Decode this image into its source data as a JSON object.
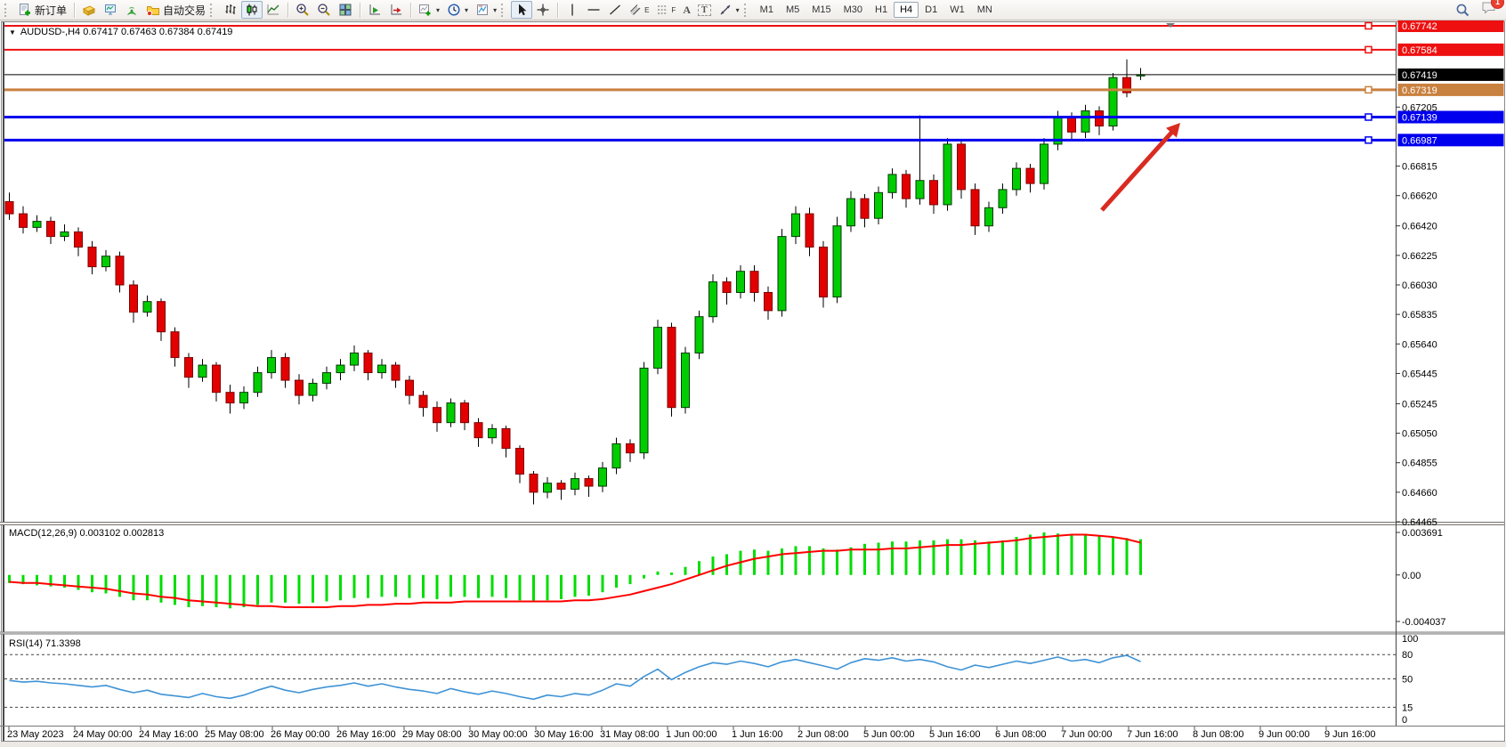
{
  "toolbar": {
    "new_order_label": "新订单",
    "autotrade_label": "自动交易",
    "timeframes": [
      "M1",
      "M5",
      "M15",
      "M30",
      "H1",
      "H4",
      "D1",
      "W1",
      "MN"
    ],
    "active_timeframe": "H4",
    "notification_count": "1",
    "annotation_labels": {
      "channel": "E",
      "fibo": "F",
      "text": "A",
      "label": "T"
    }
  },
  "chart": {
    "title": "AUDUSD-,H4 0.67417 0.67463 0.67384 0.67419",
    "symbol": "AUDUSD-",
    "period": "H4",
    "ohlc": {
      "open": "0.67417",
      "high": "0.67463",
      "low": "0.67384",
      "close": "0.67419"
    }
  },
  "indicators": {
    "macd_label": "MACD(12,26,9) 0.003102 0.002813",
    "rsi_label": "RSI(14) 71.3398"
  },
  "colors": {
    "candle_up": "#00cd00",
    "candle_up_border": "#063906",
    "candle_down": "#e20000",
    "candle_down_border": "#7d0000",
    "wick": "#000000",
    "macd_hist": "#00dd00",
    "macd_signal": "#ff0000",
    "rsi_line": "#3f93d6",
    "level_red": "#ee1010",
    "level_blue": "#0000ee",
    "level_orange": "#c9813f",
    "current_price_bg": "#000000",
    "arrow": "#d92b21",
    "axis_text": "#000000"
  },
  "chart_data": {
    "type": "candlestick",
    "symbol": "AUDUSD",
    "timeframe": "H4",
    "price_axis": {
      "max": 0.67742,
      "min": 0.64465
    },
    "scale_ticks": [
      "0.67205",
      "0.66815",
      "0.66620",
      "0.66420",
      "0.66225",
      "0.66030",
      "0.65835",
      "0.65640",
      "0.65445",
      "0.65245",
      "0.65050",
      "0.64855",
      "0.64660",
      "0.64465"
    ],
    "levels": [
      {
        "price": 0.67742,
        "label": "0.67742",
        "color": "#ee1010",
        "width": 2,
        "marker": true
      },
      {
        "price": 0.67584,
        "label": "0.67584",
        "color": "#ee1010",
        "width": 2,
        "marker": true
      },
      {
        "price": 0.67419,
        "label": "0.67419",
        "color": "#000000",
        "width": 1,
        "marker": false
      },
      {
        "price": 0.67319,
        "label": "0.67319",
        "color": "#c9813f",
        "width": 3,
        "marker": true
      },
      {
        "price": 0.67139,
        "label": "0.67139",
        "color": "#0000ee",
        "width": 3,
        "marker": true
      },
      {
        "price": 0.66987,
        "label": "0.66987",
        "color": "#0000ee",
        "width": 3,
        "marker": true
      }
    ],
    "candles": [
      [
        0.6658,
        0.6664,
        0.6646,
        0.665
      ],
      [
        0.665,
        0.6655,
        0.6637,
        0.6641
      ],
      [
        0.6641,
        0.6649,
        0.6638,
        0.6645
      ],
      [
        0.6645,
        0.6648,
        0.663,
        0.6635
      ],
      [
        0.6635,
        0.6643,
        0.6632,
        0.6638
      ],
      [
        0.6638,
        0.6641,
        0.6622,
        0.6628
      ],
      [
        0.6628,
        0.6632,
        0.661,
        0.6615
      ],
      [
        0.6615,
        0.6626,
        0.6612,
        0.6622
      ],
      [
        0.6622,
        0.6625,
        0.6598,
        0.6603
      ],
      [
        0.6603,
        0.6606,
        0.6578,
        0.6585
      ],
      [
        0.6585,
        0.6596,
        0.6582,
        0.6592
      ],
      [
        0.6592,
        0.6594,
        0.6566,
        0.6572
      ],
      [
        0.6572,
        0.6575,
        0.6549,
        0.6555
      ],
      [
        0.6555,
        0.6558,
        0.6535,
        0.6542
      ],
      [
        0.6542,
        0.6554,
        0.6539,
        0.655
      ],
      [
        0.655,
        0.6552,
        0.6526,
        0.6532
      ],
      [
        0.6532,
        0.6537,
        0.6518,
        0.6525
      ],
      [
        0.6525,
        0.6536,
        0.6521,
        0.6532
      ],
      [
        0.6532,
        0.6549,
        0.6529,
        0.6545
      ],
      [
        0.6545,
        0.656,
        0.6541,
        0.6555
      ],
      [
        0.6555,
        0.6558,
        0.6535,
        0.654
      ],
      [
        0.654,
        0.6544,
        0.6524,
        0.653
      ],
      [
        0.653,
        0.6541,
        0.6526,
        0.6538
      ],
      [
        0.6538,
        0.6549,
        0.6534,
        0.6545
      ],
      [
        0.6545,
        0.6554,
        0.654,
        0.655
      ],
      [
        0.655,
        0.6563,
        0.6546,
        0.6558
      ],
      [
        0.6558,
        0.656,
        0.654,
        0.6545
      ],
      [
        0.6545,
        0.6554,
        0.6541,
        0.655
      ],
      [
        0.655,
        0.6552,
        0.6535,
        0.654
      ],
      [
        0.654,
        0.6543,
        0.6524,
        0.653
      ],
      [
        0.653,
        0.6533,
        0.6516,
        0.6522
      ],
      [
        0.6522,
        0.6526,
        0.6506,
        0.6512
      ],
      [
        0.6512,
        0.6528,
        0.6509,
        0.6525
      ],
      [
        0.6525,
        0.6527,
        0.6507,
        0.6512
      ],
      [
        0.6512,
        0.6515,
        0.6496,
        0.6502
      ],
      [
        0.6502,
        0.6511,
        0.6498,
        0.6508
      ],
      [
        0.6508,
        0.651,
        0.6489,
        0.6495
      ],
      [
        0.6495,
        0.6497,
        0.6472,
        0.6478
      ],
      [
        0.6478,
        0.648,
        0.6458,
        0.6466
      ],
      [
        0.6466,
        0.6476,
        0.6462,
        0.6472
      ],
      [
        0.6472,
        0.6474,
        0.6461,
        0.6468
      ],
      [
        0.6468,
        0.6479,
        0.6464,
        0.6475
      ],
      [
        0.6475,
        0.6477,
        0.6463,
        0.647
      ],
      [
        0.647,
        0.6486,
        0.6466,
        0.6482
      ],
      [
        0.6482,
        0.6502,
        0.6478,
        0.6498
      ],
      [
        0.6498,
        0.6501,
        0.6486,
        0.6492
      ],
      [
        0.6492,
        0.6552,
        0.6488,
        0.6548
      ],
      [
        0.6548,
        0.658,
        0.6544,
        0.6575
      ],
      [
        0.6575,
        0.6578,
        0.6516,
        0.6522
      ],
      [
        0.6522,
        0.6562,
        0.6518,
        0.6558
      ],
      [
        0.6558,
        0.6586,
        0.6554,
        0.6582
      ],
      [
        0.6582,
        0.661,
        0.6578,
        0.6605
      ],
      [
        0.6605,
        0.6608,
        0.659,
        0.6598
      ],
      [
        0.6598,
        0.6616,
        0.6594,
        0.6612
      ],
      [
        0.6612,
        0.6616,
        0.6592,
        0.6598
      ],
      [
        0.6598,
        0.6602,
        0.658,
        0.6586
      ],
      [
        0.6586,
        0.664,
        0.6582,
        0.6635
      ],
      [
        0.6635,
        0.6655,
        0.663,
        0.665
      ],
      [
        0.665,
        0.6654,
        0.6622,
        0.6628
      ],
      [
        0.6628,
        0.6632,
        0.6588,
        0.6595
      ],
      [
        0.6595,
        0.6648,
        0.6591,
        0.6642
      ],
      [
        0.6642,
        0.6665,
        0.6638,
        0.666
      ],
      [
        0.666,
        0.6663,
        0.6641,
        0.6647
      ],
      [
        0.6647,
        0.6668,
        0.6643,
        0.6664
      ],
      [
        0.6664,
        0.668,
        0.666,
        0.6676
      ],
      [
        0.6676,
        0.6679,
        0.6654,
        0.666
      ],
      [
        0.666,
        0.6715,
        0.6656,
        0.6672
      ],
      [
        0.6672,
        0.6676,
        0.665,
        0.6656
      ],
      [
        0.6656,
        0.67,
        0.6652,
        0.6696
      ],
      [
        0.6696,
        0.6699,
        0.666,
        0.6666
      ],
      [
        0.6666,
        0.667,
        0.6636,
        0.6642
      ],
      [
        0.6642,
        0.6658,
        0.6638,
        0.6654
      ],
      [
        0.6654,
        0.667,
        0.665,
        0.6666
      ],
      [
        0.6666,
        0.6684,
        0.6662,
        0.668
      ],
      [
        0.668,
        0.6683,
        0.6664,
        0.667
      ],
      [
        0.667,
        0.67,
        0.6666,
        0.6696
      ],
      [
        0.6696,
        0.6718,
        0.6692,
        0.6714
      ],
      [
        0.6714,
        0.6717,
        0.6698,
        0.6704
      ],
      [
        0.6704,
        0.6722,
        0.67,
        0.6718
      ],
      [
        0.6718,
        0.6721,
        0.6702,
        0.6708
      ],
      [
        0.6708,
        0.6743,
        0.6705,
        0.674
      ],
      [
        0.674,
        0.6752,
        0.6727,
        0.673
      ],
      [
        0.67417,
        0.67463,
        0.67384,
        0.67419
      ]
    ],
    "macd": {
      "axis": {
        "max": 0.003691,
        "min": -0.004037
      },
      "ticks": [
        {
          "v": 0.003691,
          "label": "0.003691"
        },
        {
          "v": 0,
          "label": "0.00"
        },
        {
          "v": -0.004037,
          "label": "-0.004037"
        }
      ],
      "hist": [
        -0.0007,
        -0.0008,
        -0.0009,
        -0.001,
        -0.0011,
        -0.0013,
        -0.0015,
        -0.0016,
        -0.0019,
        -0.0022,
        -0.0022,
        -0.0024,
        -0.0026,
        -0.0028,
        -0.0027,
        -0.0028,
        -0.0029,
        -0.0028,
        -0.0026,
        -0.0024,
        -0.0024,
        -0.0025,
        -0.0024,
        -0.0023,
        -0.0022,
        -0.002,
        -0.002,
        -0.0019,
        -0.0019,
        -0.002,
        -0.002,
        -0.0021,
        -0.0019,
        -0.0019,
        -0.002,
        -0.0019,
        -0.002,
        -0.0022,
        -0.0023,
        -0.0022,
        -0.0021,
        -0.0019,
        -0.0018,
        -0.0015,
        -0.0011,
        -0.0008,
        -0.0003,
        0.0003,
        0.0002,
        0.0007,
        0.0012,
        0.0016,
        0.0018,
        0.0021,
        0.0022,
        0.0021,
        0.0023,
        0.0025,
        0.0025,
        0.0023,
        0.0022,
        0.0024,
        0.0027,
        0.0028,
        0.0029,
        0.0029,
        0.003,
        0.003,
        0.0031,
        0.0031,
        0.003,
        0.0029,
        0.003,
        0.0033,
        0.0035,
        0.00369,
        0.0036,
        0.0035,
        0.0035,
        0.0034,
        0.0033,
        0.0032,
        0.0031
      ],
      "signal": [
        -0.0006,
        -0.0007,
        -0.0007,
        -0.0008,
        -0.0009,
        -0.001,
        -0.0011,
        -0.0012,
        -0.0014,
        -0.0016,
        -0.0017,
        -0.0019,
        -0.002,
        -0.0022,
        -0.0023,
        -0.0024,
        -0.0025,
        -0.0026,
        -0.0027,
        -0.0027,
        -0.0028,
        -0.0028,
        -0.0028,
        -0.0028,
        -0.0027,
        -0.0027,
        -0.0026,
        -0.0026,
        -0.0025,
        -0.0025,
        -0.0024,
        -0.0024,
        -0.0024,
        -0.0023,
        -0.0023,
        -0.0023,
        -0.0023,
        -0.0023,
        -0.0023,
        -0.0023,
        -0.0023,
        -0.0022,
        -0.0022,
        -0.0021,
        -0.0019,
        -0.0017,
        -0.0014,
        -0.0011,
        -0.0008,
        -0.0004,
        0.0,
        0.0004,
        0.0008,
        0.0011,
        0.0014,
        0.0016,
        0.0018,
        0.0019,
        0.002,
        0.0021,
        0.0021,
        0.0022,
        0.0022,
        0.0022,
        0.0023,
        0.0023,
        0.0024,
        0.0025,
        0.0026,
        0.0026,
        0.0027,
        0.0028,
        0.0029,
        0.003,
        0.0032,
        0.0033,
        0.0034,
        0.0035,
        0.0035,
        0.0034,
        0.0033,
        0.0031,
        0.0028
      ]
    },
    "rsi": {
      "axis": {
        "max": 100,
        "min": 0
      },
      "ticks": [
        {
          "v": 100,
          "label": "100"
        },
        {
          "v": 80,
          "label": "80"
        },
        {
          "v": 50,
          "label": "50"
        },
        {
          "v": 15,
          "label": "15"
        },
        {
          "v": 0,
          "label": "0"
        }
      ],
      "dashed_levels": [
        80,
        50,
        15
      ],
      "values": [
        48,
        46,
        47,
        45,
        44,
        42,
        40,
        42,
        37,
        33,
        36,
        31,
        29,
        27,
        32,
        28,
        26,
        30,
        36,
        41,
        36,
        33,
        37,
        40,
        42,
        45,
        41,
        44,
        40,
        37,
        35,
        32,
        38,
        34,
        31,
        35,
        32,
        28,
        25,
        30,
        28,
        32,
        30,
        36,
        44,
        41,
        53,
        62,
        49,
        58,
        65,
        70,
        68,
        72,
        69,
        65,
        71,
        74,
        70,
        66,
        62,
        70,
        75,
        73,
        76,
        72,
        74,
        71,
        65,
        61,
        67,
        64,
        68,
        72,
        69,
        73,
        77,
        72,
        74,
        70,
        76,
        79,
        71.34
      ]
    },
    "dates": [
      "23 May 2023",
      "24 May 00:00",
      "24 May 16:00",
      "25 May 08:00",
      "26 May 00:00",
      "26 May 16:00",
      "29 May 08:00",
      "30 May 00:00",
      "30 May 16:00",
      "31 May 08:00",
      "1 Jun 00:00",
      "1 Jun 16:00",
      "2 Jun 08:00",
      "5 Jun 00:00",
      "5 Jun 16:00",
      "6 Jun 08:00",
      "7 Jun 00:00",
      "7 Jun 16:00",
      "8 Jun 08:00",
      "9 Jun 00:00",
      "9 Jun 16:00"
    ],
    "annotation": {
      "type": "arrow",
      "color": "#d92b21",
      "from_xy": [
        1238,
        236
      ],
      "to_xy": [
        1326,
        138
      ]
    }
  }
}
